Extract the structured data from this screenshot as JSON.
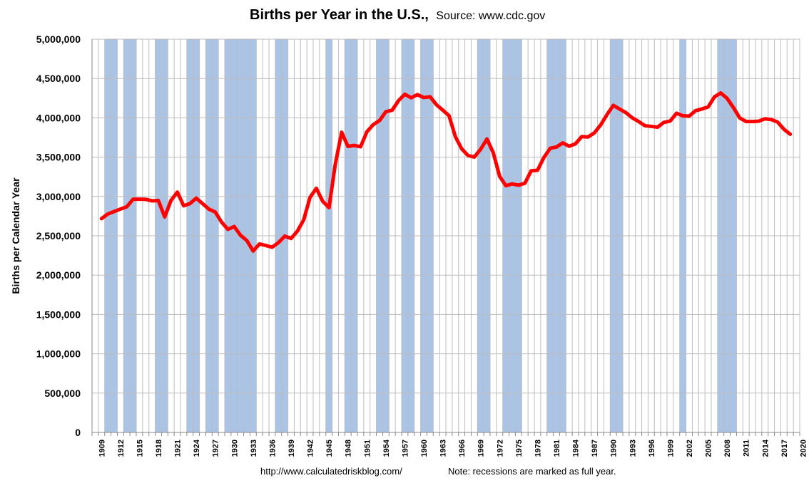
{
  "chart_data": {
    "type": "line",
    "title": "Births per Year in the U.S.,",
    "subtitle": "Source: www.cdc.gov",
    "xlabel": "",
    "ylabel": "Births per Calendar Year",
    "xlim": [
      1909,
      2020
    ],
    "ylim": [
      0,
      5000000
    ],
    "y_ticks": [
      "0",
      "500,000",
      "1,000,000",
      "1,500,000",
      "2,000,000",
      "2,500,000",
      "3,000,000",
      "3,500,000",
      "4,000,000",
      "4,500,000",
      "5,000,000"
    ],
    "x_tick_labels": [
      "1909",
      "1912",
      "1915",
      "1918",
      "1921",
      "1924",
      "1927",
      "1930",
      "1933",
      "1936",
      "1939",
      "1942",
      "1945",
      "1948",
      "1951",
      "1954",
      "1957",
      "1960",
      "1963",
      "1966",
      "1969",
      "1972",
      "1975",
      "1978",
      "1981",
      "1984",
      "1987",
      "1990",
      "1993",
      "1996",
      "1999",
      "2002",
      "2005",
      "2008",
      "2011",
      "2014",
      "2017",
      "2020"
    ],
    "grid": true,
    "series": [
      {
        "color": "#ff0000",
        "x": [
          1909,
          1910,
          1911,
          1912,
          1913,
          1914,
          1915,
          1916,
          1917,
          1918,
          1919,
          1920,
          1921,
          1922,
          1923,
          1924,
          1925,
          1926,
          1927,
          1928,
          1929,
          1930,
          1931,
          1932,
          1933,
          1934,
          1935,
          1936,
          1937,
          1938,
          1939,
          1940,
          1941,
          1942,
          1943,
          1944,
          1945,
          1946,
          1947,
          1948,
          1949,
          1950,
          1951,
          1952,
          1953,
          1954,
          1955,
          1956,
          1957,
          1958,
          1959,
          1960,
          1961,
          1962,
          1963,
          1964,
          1965,
          1966,
          1967,
          1968,
          1969,
          1970,
          1971,
          1972,
          1973,
          1974,
          1975,
          1976,
          1977,
          1978,
          1979,
          1980,
          1981,
          1982,
          1983,
          1984,
          1985,
          1986,
          1987,
          1988,
          1989,
          1990,
          1991,
          1992,
          1993,
          1994,
          1995,
          1996,
          1997,
          1998,
          1999,
          2000,
          2001,
          2002,
          2003,
          2004,
          2005,
          2006,
          2007,
          2008,
          2009,
          2010,
          2011,
          2012,
          2013,
          2014,
          2015,
          2016,
          2017,
          2018
        ],
        "values": [
          2718000,
          2777000,
          2809000,
          2840000,
          2869000,
          2965000,
          2965000,
          2964000,
          2944000,
          2948000,
          2740000,
          2950000,
          3055000,
          2882000,
          2910000,
          2979000,
          2909000,
          2839000,
          2802000,
          2674000,
          2582000,
          2618000,
          2506000,
          2440000,
          2307000,
          2396000,
          2377000,
          2355000,
          2413000,
          2496000,
          2466000,
          2559000,
          2703000,
          2989000,
          3104000,
          2939000,
          2858000,
          3411000,
          3817000,
          3637000,
          3649000,
          3632000,
          3823000,
          3913000,
          3965000,
          4078000,
          4097000,
          4218000,
          4300000,
          4255000,
          4295000,
          4258000,
          4268000,
          4167000,
          4098000,
          4027000,
          3760000,
          3606000,
          3521000,
          3502000,
          3600000,
          3731000,
          3556000,
          3258000,
          3137000,
          3160000,
          3144000,
          3168000,
          3327000,
          3333000,
          3494000,
          3612000,
          3629000,
          3681000,
          3639000,
          3669000,
          3761000,
          3757000,
          3809000,
          3910000,
          4041000,
          4158000,
          4111000,
          4065000,
          4000000,
          3953000,
          3900000,
          3891000,
          3881000,
          3942000,
          3959000,
          4059000,
          4026000,
          4022000,
          4090000,
          4112000,
          4138000,
          4266000,
          4316000,
          4248000,
          4131000,
          3999000,
          3954000,
          3953000,
          3957000,
          3988000,
          3978000,
          3946000,
          3855000,
          3791000
        ]
      }
    ],
    "recessions": [
      [
        1910,
        1911
      ],
      [
        1913,
        1914
      ],
      [
        1918,
        1919
      ],
      [
        1923,
        1924
      ],
      [
        1926,
        1927
      ],
      [
        1929,
        1933
      ],
      [
        1937,
        1938
      ],
      [
        1945,
        1945
      ],
      [
        1948,
        1949
      ],
      [
        1953,
        1954
      ],
      [
        1957,
        1958
      ],
      [
        1960,
        1961
      ],
      [
        1969,
        1970
      ],
      [
        1973,
        1975
      ],
      [
        1980,
        1982
      ],
      [
        1990,
        1991
      ],
      [
        2001,
        2001
      ],
      [
        2007,
        2009
      ]
    ],
    "recession_color": "#a9c4e6",
    "footer_url": "http://www.calculatedriskblog.com/",
    "footer_note": "Note: recessions are marked as full year."
  }
}
